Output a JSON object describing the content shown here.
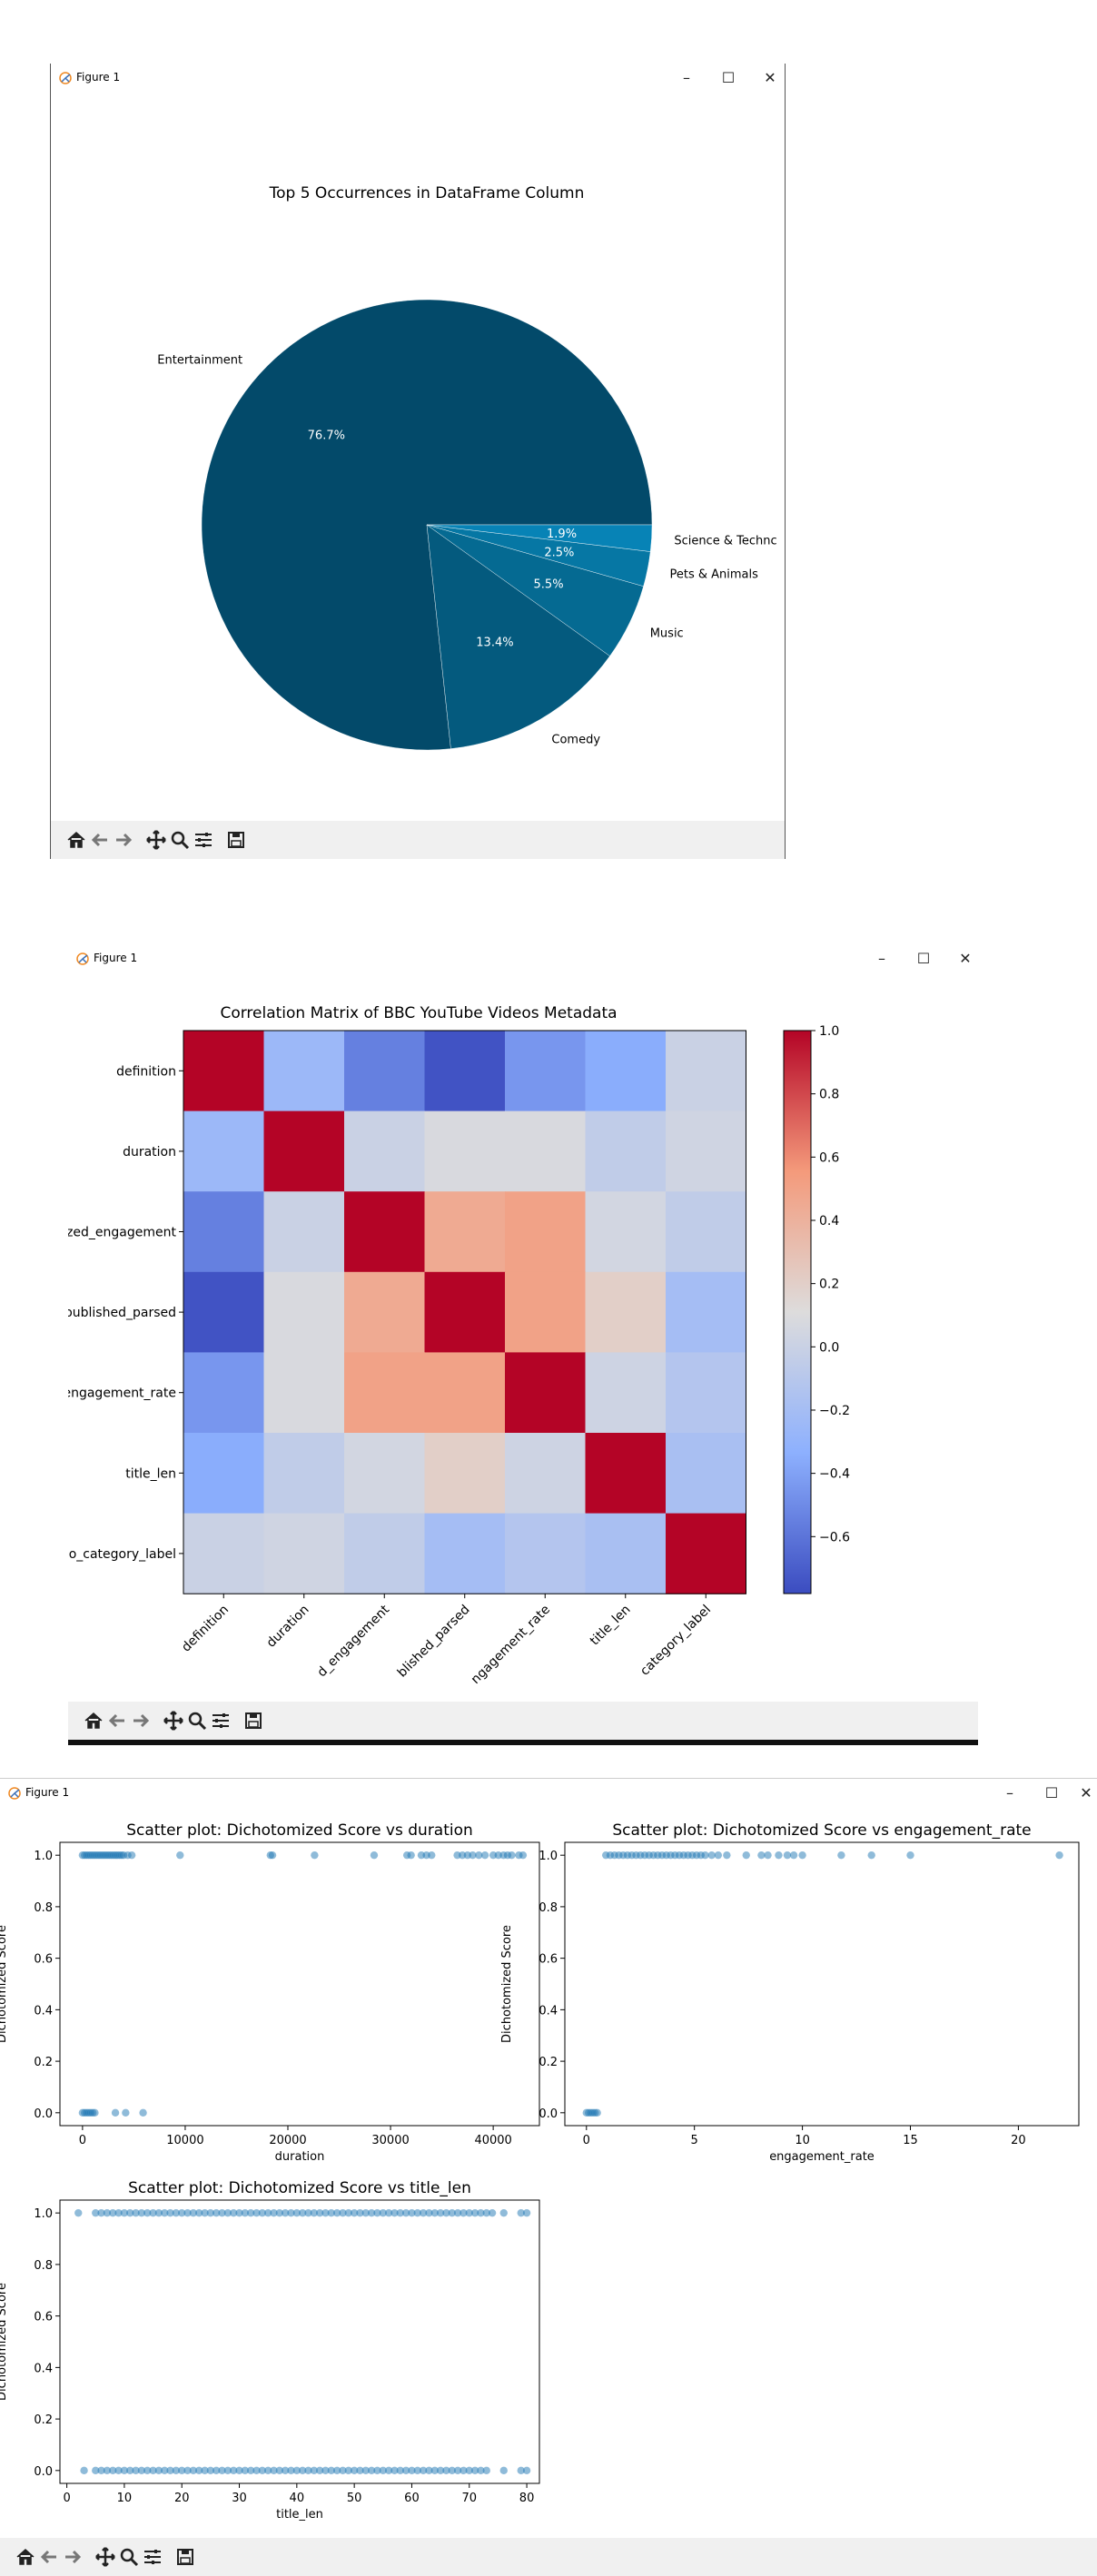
{
  "windows": [
    {
      "title": "Figure 1",
      "minimize": "–",
      "maximize": "☐",
      "close": "✕"
    },
    {
      "title": "Figure 1",
      "minimize": "–",
      "maximize": "☐",
      "close": "✕"
    },
    {
      "title": "Figure 1",
      "minimize": "–",
      "maximize": "☐",
      "close": "✕"
    }
  ],
  "toolbar": [
    "home-icon",
    "back-icon",
    "forward-icon",
    "pan-icon",
    "zoom-icon",
    "configure-icon",
    "save-icon"
  ],
  "chart_data": [
    {
      "type": "pie",
      "title": "Top 5 Occurrences in DataFrame Column",
      "slices": [
        {
          "label": "Entertainment",
          "pct": 76.7,
          "pct_label": "76.7%",
          "color": "#034a6a"
        },
        {
          "label": "Comedy",
          "pct": 13.4,
          "pct_label": "13.4%",
          "color": "#045a7e"
        },
        {
          "label": "Music",
          "pct": 5.5,
          "pct_label": "5.5%",
          "color": "#056a92"
        },
        {
          "label": "Pets & Animals",
          "pct": 2.5,
          "pct_label": "2.5%",
          "color": "#0677a4"
        },
        {
          "label": "Science & Technc",
          "pct": 1.9,
          "pct_label": "1.9%",
          "color": "#0783b6"
        }
      ]
    },
    {
      "type": "heatmap",
      "title": "Correlation Matrix of BBC YouTube Videos Metadata",
      "row_labels": [
        "definition",
        "duration",
        "zed_engagement",
        "oublished_parsed",
        "engagement_rate",
        "title_len",
        "o_category_label"
      ],
      "col_labels": [
        "definition",
        "duration",
        "d_engagement",
        "blished_parsed",
        "ngagement_rate",
        "title_len",
        "category_label"
      ],
      "values": [
        [
          1.0,
          -0.25,
          -0.55,
          -0.75,
          -0.45,
          -0.35,
          0.0
        ],
        [
          -0.25,
          1.0,
          0.0,
          0.08,
          0.08,
          -0.05,
          0.03
        ],
        [
          -0.55,
          0.0,
          1.0,
          0.45,
          0.5,
          0.05,
          -0.05
        ],
        [
          -0.75,
          0.08,
          0.45,
          1.0,
          0.5,
          0.2,
          -0.2
        ],
        [
          -0.45,
          0.08,
          0.5,
          0.5,
          1.0,
          0.02,
          -0.12
        ],
        [
          -0.35,
          -0.05,
          0.05,
          0.2,
          0.02,
          1.0,
          -0.18
        ],
        [
          0.0,
          0.03,
          -0.05,
          -0.2,
          -0.12,
          -0.18,
          1.0
        ]
      ],
      "colorbar_ticks": [
        "1.0",
        "0.8",
        "0.6",
        "0.4",
        "0.2",
        "0.0",
        "−0.2",
        "−0.4",
        "−0.6"
      ],
      "colorbar_values": [
        1.0,
        0.8,
        0.6,
        0.4,
        0.2,
        0.0,
        -0.2,
        -0.4,
        -0.6
      ],
      "vmin": -0.78,
      "vmax": 1.0
    },
    {
      "type": "scatter",
      "title": "Scatter plot: Dichotomized Score vs duration",
      "xlabel": "duration",
      "ylabel": "Dichotomized Score",
      "xlim": [
        -2200,
        44500
      ],
      "ylim": [
        -0.05,
        1.05
      ],
      "xticks": [
        0,
        10000,
        20000,
        30000,
        40000
      ],
      "xtick_labels": [
        "0",
        "10000",
        "20000",
        "30000",
        "40000"
      ],
      "yticks": [
        0,
        0.2,
        0.4,
        0.6,
        0.8,
        1.0
      ],
      "ytick_labels": [
        "0.0",
        "0.2",
        "0.4",
        "0.6",
        "0.8",
        "1.0"
      ],
      "color": "#1f77b4",
      "points": [
        [
          0,
          1
        ],
        [
          200,
          1
        ],
        [
          400,
          1
        ],
        [
          600,
          1
        ],
        [
          800,
          1
        ],
        [
          1000,
          1
        ],
        [
          1200,
          1
        ],
        [
          1400,
          1
        ],
        [
          1600,
          1
        ],
        [
          1800,
          1
        ],
        [
          2000,
          1
        ],
        [
          2200,
          1
        ],
        [
          2400,
          1
        ],
        [
          2600,
          1
        ],
        [
          2800,
          1
        ],
        [
          3000,
          1
        ],
        [
          3200,
          1
        ],
        [
          3400,
          1
        ],
        [
          3600,
          1
        ],
        [
          3800,
          1
        ],
        [
          4000,
          1
        ],
        [
          4400,
          1
        ],
        [
          4800,
          1
        ],
        [
          9500,
          1
        ],
        [
          18300,
          1
        ],
        [
          18500,
          1
        ],
        [
          22600,
          1
        ],
        [
          28400,
          1
        ],
        [
          31600,
          1
        ],
        [
          32000,
          1
        ],
        [
          33000,
          1
        ],
        [
          33500,
          1
        ],
        [
          34000,
          1
        ],
        [
          36500,
          1
        ],
        [
          37000,
          1
        ],
        [
          37500,
          1
        ],
        [
          38000,
          1
        ],
        [
          38600,
          1
        ],
        [
          39200,
          1
        ],
        [
          40000,
          1
        ],
        [
          40500,
          1
        ],
        [
          41000,
          1
        ],
        [
          41400,
          1
        ],
        [
          41800,
          1
        ],
        [
          42500,
          1
        ],
        [
          42900,
          1
        ],
        [
          0,
          0
        ],
        [
          200,
          0
        ],
        [
          400,
          0
        ],
        [
          600,
          0
        ],
        [
          800,
          0
        ],
        [
          1000,
          0
        ],
        [
          1200,
          0
        ],
        [
          3200,
          0
        ],
        [
          4200,
          0
        ],
        [
          5900,
          0
        ]
      ]
    },
    {
      "type": "scatter",
      "title": "Scatter plot: Dichotomized Score vs engagement_rate",
      "xlabel": "engagement_rate",
      "ylabel": "Dichotomized Score",
      "xlim": [
        -1.0,
        22.8
      ],
      "ylim": [
        -0.05,
        1.05
      ],
      "xticks": [
        0,
        5,
        10,
        15,
        20
      ],
      "xtick_labels": [
        "0",
        "5",
        "10",
        "15",
        "20"
      ],
      "yticks": [
        0,
        0.2,
        0.4,
        0.6,
        0.8,
        1.0
      ],
      "ytick_labels": [
        "0.0",
        "0.2",
        "0.4",
        "0.6",
        "0.8",
        "1.0"
      ],
      "color": "#1f77b4",
      "points": [
        [
          0.9,
          1
        ],
        [
          1.1,
          1
        ],
        [
          1.3,
          1
        ],
        [
          1.5,
          1
        ],
        [
          1.7,
          1
        ],
        [
          1.9,
          1
        ],
        [
          2.1,
          1
        ],
        [
          2.3,
          1
        ],
        [
          2.5,
          1
        ],
        [
          2.7,
          1
        ],
        [
          2.9,
          1
        ],
        [
          3.1,
          1
        ],
        [
          3.3,
          1
        ],
        [
          3.5,
          1
        ],
        [
          3.7,
          1
        ],
        [
          3.9,
          1
        ],
        [
          4.1,
          1
        ],
        [
          4.3,
          1
        ],
        [
          4.5,
          1
        ],
        [
          4.7,
          1
        ],
        [
          4.9,
          1
        ],
        [
          5.1,
          1
        ],
        [
          5.3,
          1
        ],
        [
          5.5,
          1
        ],
        [
          5.8,
          1
        ],
        [
          6.1,
          1
        ],
        [
          6.5,
          1
        ],
        [
          7.4,
          1
        ],
        [
          8.1,
          1
        ],
        [
          8.4,
          1
        ],
        [
          8.9,
          1
        ],
        [
          9.3,
          1
        ],
        [
          9.6,
          1
        ],
        [
          10.0,
          1
        ],
        [
          11.8,
          1
        ],
        [
          13.2,
          1
        ],
        [
          15.0,
          1
        ],
        [
          21.9,
          1
        ],
        [
          0.0,
          0
        ],
        [
          0.1,
          0
        ],
        [
          0.2,
          0
        ],
        [
          0.3,
          0
        ],
        [
          0.4,
          0
        ],
        [
          0.5,
          0
        ]
      ]
    },
    {
      "type": "scatter",
      "title": "Scatter plot: Dichotomized Score vs title_len",
      "xlabel": "title_len",
      "ylabel": "Dichotomized Score",
      "xlim": [
        -1.2,
        82.2
      ],
      "ylim": [
        -0.05,
        1.05
      ],
      "xticks": [
        0,
        10,
        20,
        30,
        40,
        50,
        60,
        70,
        80
      ],
      "xtick_labels": [
        "0",
        "10",
        "20",
        "30",
        "40",
        "50",
        "60",
        "70",
        "80"
      ],
      "yticks": [
        0,
        0.2,
        0.4,
        0.6,
        0.8,
        1.0
      ],
      "ytick_labels": [
        "0.0",
        "0.2",
        "0.4",
        "0.6",
        "0.8",
        "1.0"
      ],
      "color": "#1f77b4",
      "points_ranges": [
        {
          "y": 1,
          "from": 5,
          "to": 74,
          "step": 1,
          "extra": [
            2,
            76,
            79,
            80
          ]
        },
        {
          "y": 0,
          "from": 5,
          "to": 73,
          "step": 1,
          "extra": [
            3,
            76,
            79,
            80
          ]
        }
      ]
    }
  ]
}
